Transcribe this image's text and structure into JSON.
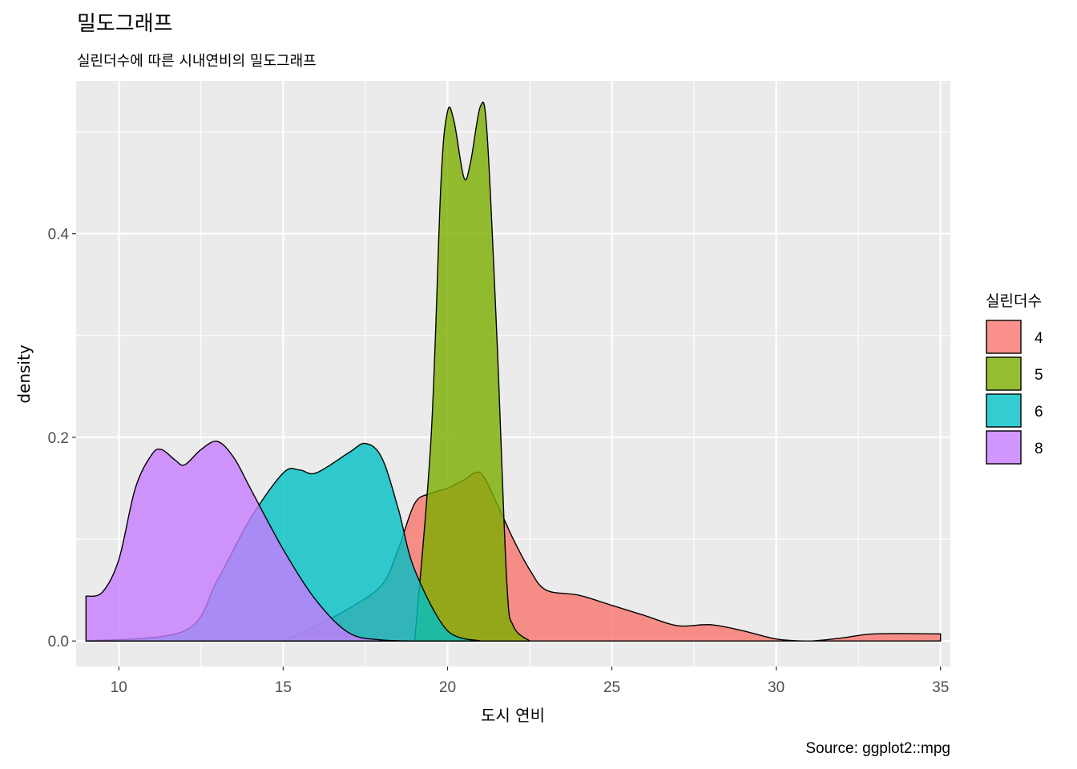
{
  "chart_data": {
    "type": "area",
    "title": "밀도그래프",
    "subtitle": "실린더수에 따른 시내연비의 밀도그래프",
    "caption": "Source: ggplot2::mpg",
    "xlabel": "도시 연비",
    "ylabel": "density",
    "xlim": [
      8.7,
      35.3
    ],
    "ylim": [
      -0.025,
      0.55
    ],
    "x_ticks": [
      10,
      15,
      20,
      25,
      30,
      35
    ],
    "y_ticks": [
      0.0,
      0.2,
      0.4
    ],
    "y_tick_labels": [
      "0.0",
      "0.2",
      "0.4"
    ],
    "grid": true,
    "legend": {
      "title": "실린더수",
      "position": "right"
    },
    "series": [
      {
        "name": "4",
        "color": "#F8766D",
        "x": [
          15,
          16,
          17,
          18,
          18.5,
          19,
          19.5,
          20,
          20.5,
          21,
          21.5,
          22,
          22.5,
          23,
          24,
          25,
          26,
          27,
          28,
          29,
          30,
          31,
          32,
          33,
          35
        ],
        "density": [
          0.0,
          0.015,
          0.032,
          0.055,
          0.09,
          0.135,
          0.145,
          0.15,
          0.158,
          0.165,
          0.135,
          0.1,
          0.07,
          0.05,
          0.045,
          0.035,
          0.025,
          0.015,
          0.016,
          0.01,
          0.002,
          0.0,
          0.003,
          0.007,
          0.007
        ]
      },
      {
        "name": "5",
        "color": "#7CAE00",
        "x": [
          19,
          19.5,
          19.8,
          20,
          20.2,
          20.5,
          20.7,
          21,
          21.2,
          21.5,
          21.8,
          22,
          22.5
        ],
        "density": [
          0.0,
          0.2,
          0.45,
          0.52,
          0.51,
          0.455,
          0.47,
          0.525,
          0.5,
          0.3,
          0.06,
          0.015,
          0.0
        ]
      },
      {
        "name": "6",
        "color": "#00BFC4",
        "x": [
          9,
          12,
          13,
          14,
          15,
          15.5,
          16,
          17,
          17.5,
          18,
          18.5,
          19,
          20,
          21
        ],
        "density": [
          0.0,
          0.01,
          0.06,
          0.12,
          0.165,
          0.168,
          0.165,
          0.185,
          0.194,
          0.18,
          0.13,
          0.07,
          0.01,
          0.0
        ]
      },
      {
        "name": "8",
        "color": "#C77CFF",
        "x": [
          9,
          9.5,
          10,
          10.5,
          11,
          11.3,
          11.7,
          12,
          12.5,
          13,
          13.5,
          14,
          15,
          16,
          17,
          18,
          19
        ],
        "density": [
          0.044,
          0.048,
          0.08,
          0.15,
          0.183,
          0.188,
          0.178,
          0.173,
          0.188,
          0.196,
          0.18,
          0.15,
          0.09,
          0.04,
          0.008,
          0.001,
          0.0
        ]
      }
    ]
  }
}
